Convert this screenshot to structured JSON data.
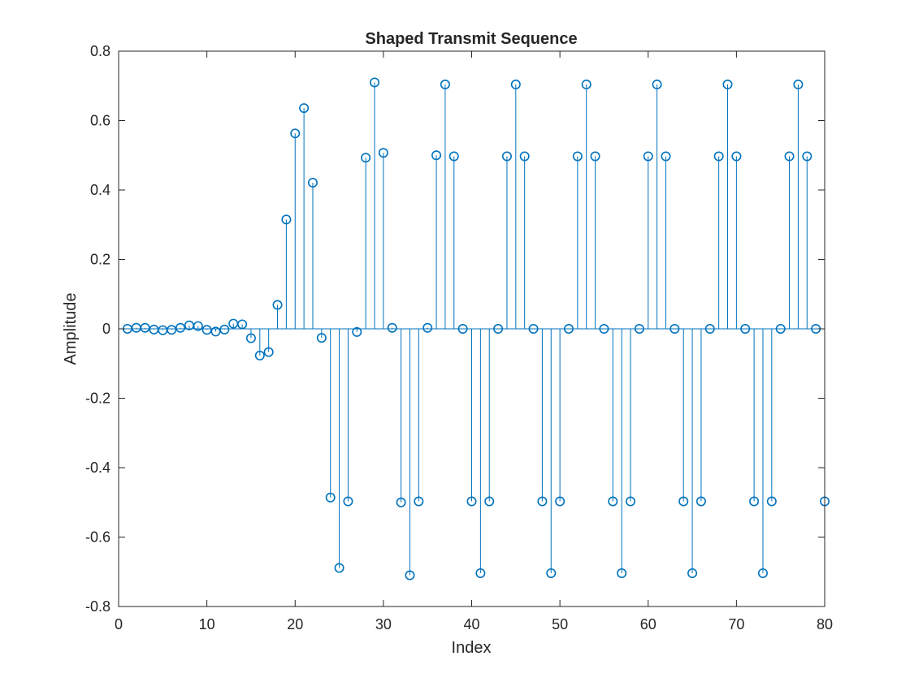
{
  "chart_data": {
    "type": "stem",
    "title": "Shaped Transmit Sequence",
    "xlabel": "Index",
    "ylabel": "Amplitude",
    "xlim": [
      0,
      80
    ],
    "ylim": [
      -0.8,
      0.8
    ],
    "xticks": [
      "0",
      "10",
      "20",
      "30",
      "40",
      "50",
      "60",
      "70",
      "80"
    ],
    "yticks": [
      "-0.8",
      "-0.6",
      "-0.4",
      "-0.2",
      "0",
      "0.2",
      "0.4",
      "0.6",
      "0.8"
    ],
    "grid": false,
    "legend": "none",
    "series_color": "#0072BD",
    "x": [
      1,
      2,
      3,
      4,
      5,
      6,
      7,
      8,
      9,
      10,
      11,
      12,
      13,
      14,
      15,
      16,
      17,
      18,
      19,
      20,
      21,
      22,
      23,
      24,
      25,
      26,
      27,
      28,
      29,
      30,
      31,
      32,
      33,
      34,
      35,
      36,
      37,
      38,
      39,
      40,
      41,
      42,
      43,
      44,
      45,
      46,
      47,
      48,
      49,
      50,
      51,
      52,
      53,
      54,
      55,
      56,
      57,
      58,
      59,
      60,
      61,
      62,
      63,
      64,
      65,
      66,
      67,
      68,
      69,
      70,
      71,
      72,
      73,
      74,
      75,
      76,
      77,
      78,
      79,
      80
    ],
    "values": [
      0.0,
      0.003,
      0.003,
      -0.002,
      -0.004,
      -0.003,
      0.003,
      0.01,
      0.008,
      -0.003,
      -0.008,
      -0.002,
      0.015,
      0.013,
      -0.027,
      -0.077,
      -0.067,
      0.069,
      0.315,
      0.563,
      0.636,
      0.421,
      -0.026,
      -0.486,
      -0.689,
      -0.497,
      -0.009,
      0.493,
      0.71,
      0.507,
      0.003,
      -0.5,
      -0.71,
      -0.497,
      0.003,
      0.5,
      0.704,
      0.497,
      0.0,
      -0.497,
      -0.704,
      -0.497,
      0.0,
      0.497,
      0.704,
      0.497,
      0.0,
      -0.497,
      -0.704,
      -0.497,
      0.0,
      0.497,
      0.704,
      0.497,
      0.0,
      -0.497,
      -0.704,
      -0.497,
      0.0,
      0.497,
      0.704,
      0.497,
      0.0,
      -0.497,
      -0.704,
      -0.497,
      0.0,
      0.497,
      0.704,
      0.497,
      0.0,
      -0.497,
      -0.704,
      -0.497,
      0.0,
      0.497,
      0.704,
      0.497,
      0.0,
      -0.497
    ]
  }
}
